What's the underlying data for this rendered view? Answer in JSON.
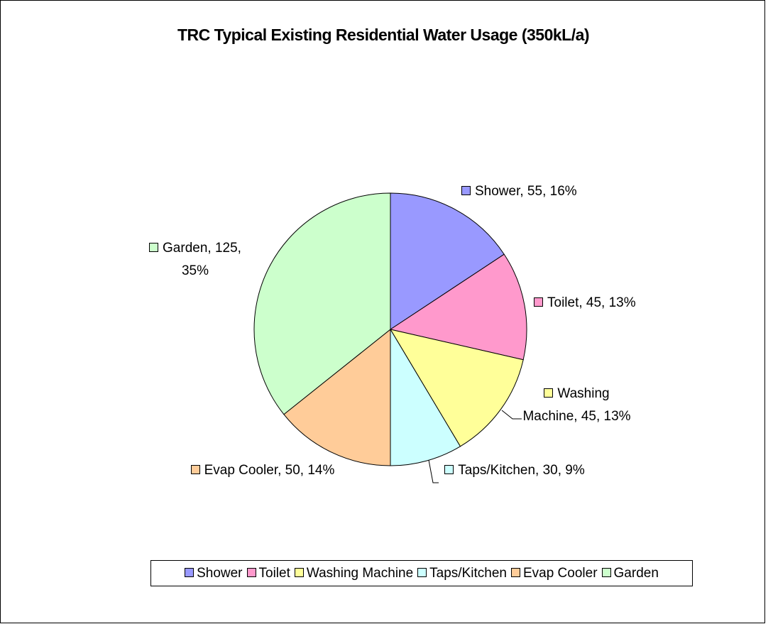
{
  "chart_data": {
    "type": "pie",
    "title": "TRC Typical Existing Residential Water Usage (350kL/a)",
    "categories": [
      "Shower",
      "Toilet",
      "Washing Machine",
      "Taps/Kitchen",
      "Evap Cooler",
      "Garden"
    ],
    "values": [
      55,
      45,
      45,
      30,
      50,
      125
    ],
    "value_labels": [
      "Shower, 55, 16%",
      "Toilet, 45, 13%",
      "Washing Machine, 45, 13%",
      "Taps/Kitchen, 30, 9%",
      "Evap Cooler, 50, 14%",
      "Garden, 125, 35%"
    ],
    "colors": [
      "#9999ff",
      "#ff99cc",
      "#ffff99",
      "#ccffff",
      "#ffcc99",
      "#ccffcc"
    ],
    "legend": "bottom"
  }
}
